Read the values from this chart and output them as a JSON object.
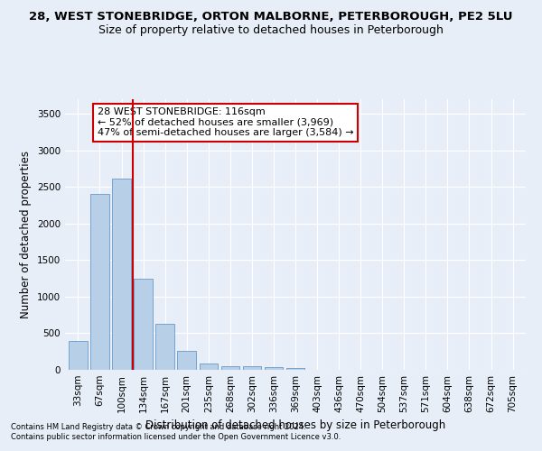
{
  "title1": "28, WEST STONEBRIDGE, ORTON MALBORNE, PETERBOROUGH, PE2 5LU",
  "title2": "Size of property relative to detached houses in Peterborough",
  "xlabel": "Distribution of detached houses by size in Peterborough",
  "ylabel": "Number of detached properties",
  "categories": [
    "33sqm",
    "67sqm",
    "100sqm",
    "134sqm",
    "167sqm",
    "201sqm",
    "235sqm",
    "268sqm",
    "302sqm",
    "336sqm",
    "369sqm",
    "403sqm",
    "436sqm",
    "470sqm",
    "504sqm",
    "537sqm",
    "571sqm",
    "604sqm",
    "638sqm",
    "672sqm",
    "705sqm"
  ],
  "values": [
    390,
    2400,
    2610,
    1240,
    630,
    255,
    90,
    55,
    55,
    40,
    30,
    0,
    0,
    0,
    0,
    0,
    0,
    0,
    0,
    0,
    0
  ],
  "bar_color": "#b8cfe8",
  "bar_edge_color": "#6699cc",
  "vline_x": 2.5,
  "vline_color": "#cc0000",
  "annotation_text": "28 WEST STONEBRIDGE: 116sqm\n← 52% of detached houses are smaller (3,969)\n47% of semi-detached houses are larger (3,584) →",
  "annotation_box_color": "#ffffff",
  "annotation_box_edge": "#cc0000",
  "ylim": [
    0,
    3700
  ],
  "yticks": [
    0,
    500,
    1000,
    1500,
    2000,
    2500,
    3000,
    3500
  ],
  "footer1": "Contains HM Land Registry data © Crown copyright and database right 2024.",
  "footer2": "Contains public sector information licensed under the Open Government Licence v3.0.",
  "bg_color": "#e8eef8",
  "plot_bg_color": "#e8eef8",
  "title1_fontsize": 9.5,
  "title2_fontsize": 9,
  "axis_label_fontsize": 8.5,
  "tick_fontsize": 7.5,
  "annotation_fontsize": 8,
  "footer_fontsize": 6
}
